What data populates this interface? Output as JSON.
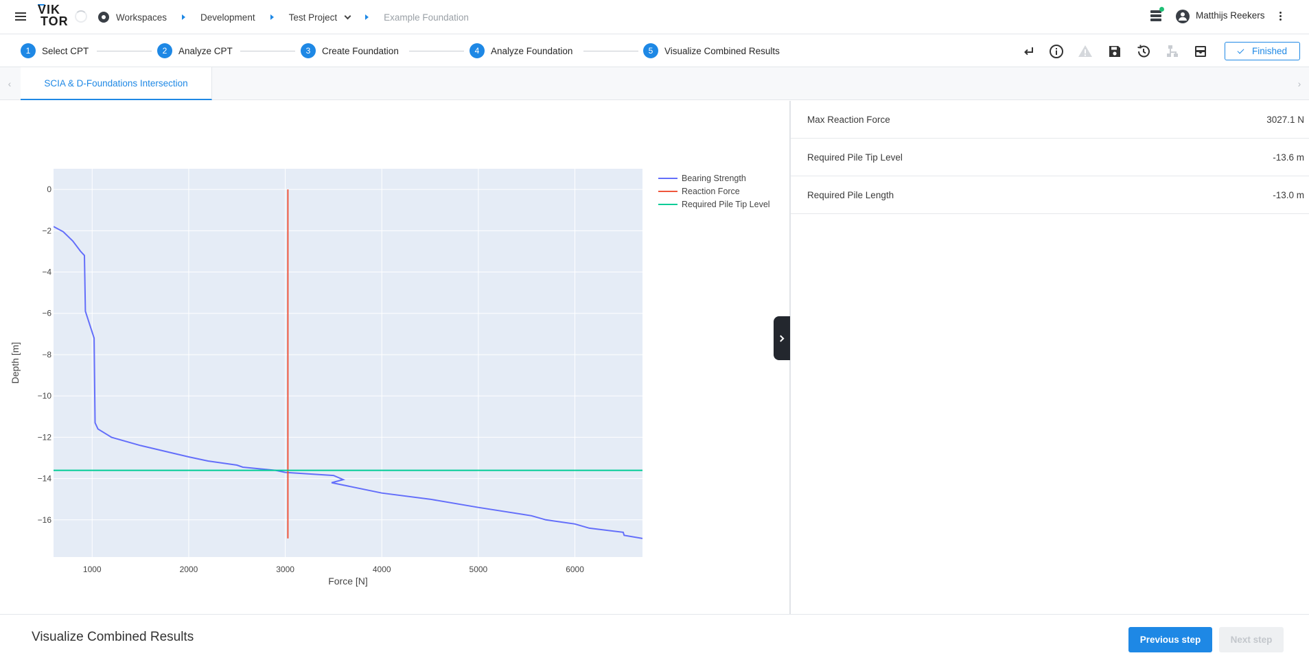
{
  "app": {
    "logo_line1": "VIK",
    "logo_line2": "TOR"
  },
  "breadcrumb": [
    {
      "label": "Workspaces"
    },
    {
      "label": "Development"
    },
    {
      "label": "Test Project"
    },
    {
      "label": "Example Foundation"
    }
  ],
  "user": {
    "name": "Matthijs Reekers"
  },
  "steps": [
    {
      "num": "1",
      "label": "Select CPT"
    },
    {
      "num": "2",
      "label": "Analyze CPT"
    },
    {
      "num": "3",
      "label": "Create Foundation"
    },
    {
      "num": "4",
      "label": "Analyze Foundation"
    },
    {
      "num": "5",
      "label": "Visualize Combined Results"
    }
  ],
  "toolbar": {
    "finished_label": "Finished"
  },
  "tabs": [
    {
      "label": "SCIA & D-Foundations Intersection"
    }
  ],
  "results": [
    {
      "label": "Max Reaction Force",
      "value": "3027.1 N"
    },
    {
      "label": "Required Pile Tip Level",
      "value": "-13.6 m"
    },
    {
      "label": "Required Pile Length",
      "value": "-13.0 m"
    }
  ],
  "footer": {
    "title": "Visualize Combined Results",
    "prev_label": "Previous step",
    "next_label": "Next step"
  },
  "chart_data": {
    "type": "line",
    "xlabel": "Force [N]",
    "ylabel": "Depth [m]",
    "xlim": [
      600,
      6700
    ],
    "ylim": [
      -17.8,
      1
    ],
    "xticks": [
      1000,
      2000,
      3000,
      4000,
      5000,
      6000
    ],
    "yticks": [
      0,
      -2,
      -4,
      -6,
      -8,
      -10,
      -12,
      -14,
      -16
    ],
    "legend_position": "top-right",
    "colors": {
      "plot_bg": "#e5ecf6",
      "grid": "#ffffff"
    },
    "series": [
      {
        "name": "Bearing Strength",
        "color": "#636efa",
        "points": [
          [
            600,
            -1.8
          ],
          [
            700,
            -2.05
          ],
          [
            800,
            -2.5
          ],
          [
            880,
            -3.0
          ],
          [
            920,
            -3.2
          ],
          [
            930,
            -5.9
          ],
          [
            1020,
            -7.2
          ],
          [
            1030,
            -11.3
          ],
          [
            1060,
            -11.6
          ],
          [
            1200,
            -12.0
          ],
          [
            1500,
            -12.4
          ],
          [
            2000,
            -12.95
          ],
          [
            2200,
            -13.15
          ],
          [
            2500,
            -13.35
          ],
          [
            2560,
            -13.45
          ],
          [
            2900,
            -13.6
          ],
          [
            3000,
            -13.7
          ],
          [
            3500,
            -13.85
          ],
          [
            3600,
            -14.05
          ],
          [
            3480,
            -14.2
          ],
          [
            4000,
            -14.7
          ],
          [
            4500,
            -15.0
          ],
          [
            5000,
            -15.4
          ],
          [
            5550,
            -15.8
          ],
          [
            5700,
            -16.0
          ],
          [
            6000,
            -16.2
          ],
          [
            6150,
            -16.4
          ],
          [
            6500,
            -16.6
          ],
          [
            6510,
            -16.75
          ],
          [
            6700,
            -16.9
          ]
        ]
      },
      {
        "name": "Reaction Force",
        "color": "#ef553b",
        "points": [
          [
            3027.1,
            0
          ],
          [
            3027.1,
            -16.9
          ]
        ]
      },
      {
        "name": "Required Pile Tip Level",
        "color": "#00cc96",
        "points": [
          [
            600,
            -13.6
          ],
          [
            6700,
            -13.6
          ]
        ]
      }
    ]
  }
}
